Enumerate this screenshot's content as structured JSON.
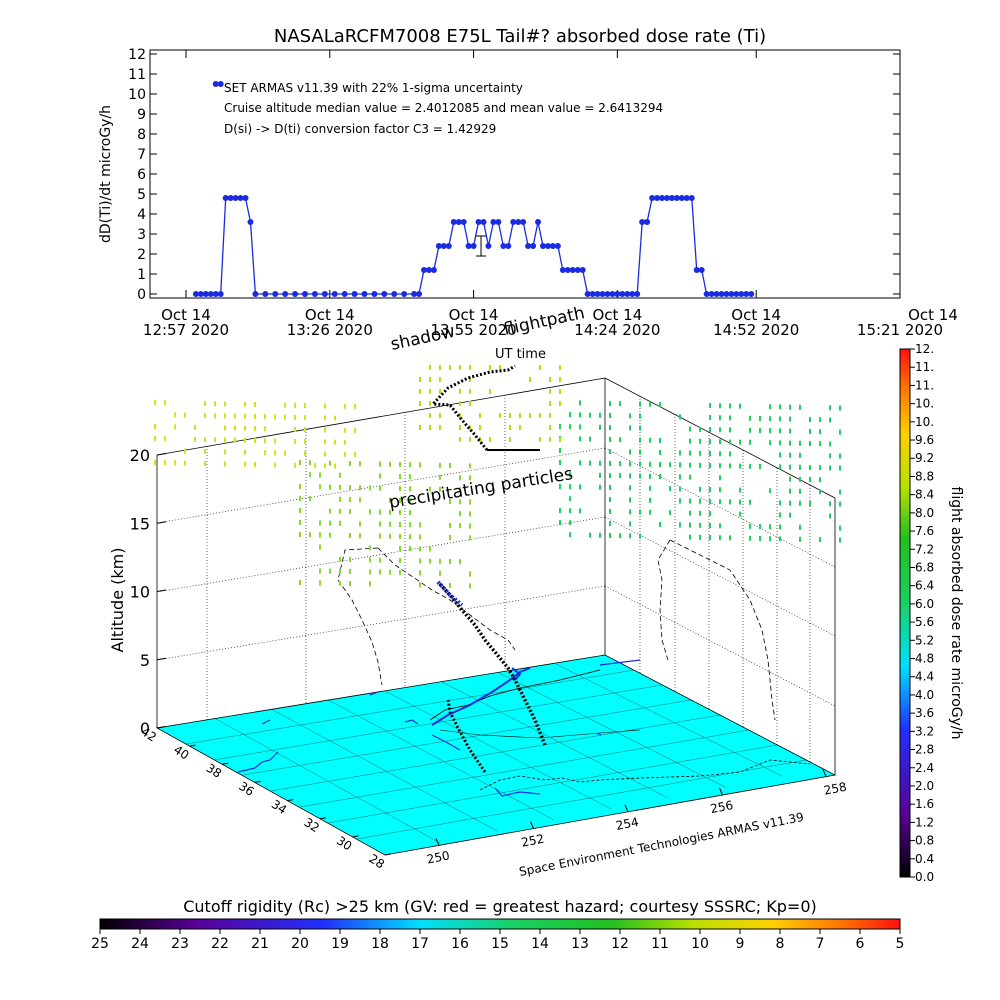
{
  "chart_data": [
    {
      "type": "line",
      "title": "NASALaRCFM7008  E75L Tail#? absorbed dose rate (Ti)",
      "ylabel": "dD(Ti)/dt microGy/h",
      "ylim": [
        0,
        12
      ],
      "yticks": [
        "0",
        "1",
        "2",
        "3",
        "4",
        "5",
        "6",
        "7",
        "8",
        "9",
        "10",
        "11",
        "12"
      ],
      "xlim": [
        0,
        144
      ],
      "xticks": [
        {
          "x": 0,
          "line1": "Oct 14",
          "line2": "12:57 2020"
        },
        {
          "x": 29,
          "line1": "Oct 14",
          "line2": "13:26 2020"
        },
        {
          "x": 58,
          "line1": "Oct 14",
          "line2": "13:55 2020"
        },
        {
          "x": 87,
          "line1": "Oct 14",
          "line2": "14:24 2020"
        },
        {
          "x": 115,
          "line1": "Oct 14",
          "line2": "14:52 2020"
        },
        {
          "x": 144,
          "line1": "Oct 14",
          "line2": "15:21 2020"
        }
      ],
      "annotations": [
        "SET ARMAS v11.39 with 22% 1-sigma uncertainty",
        "Cruise altitude median value = 2.4012085 and mean value = 2.6413294",
        "D(si) -> D(ti) conversion factor C3 = 1.42929"
      ],
      "series": [
        {
          "color": "#1a2be0",
          "points": [
            [
              2,
              0
            ],
            [
              3,
              0
            ],
            [
              4,
              0
            ],
            [
              5,
              0
            ],
            [
              6,
              0
            ],
            [
              7,
              0
            ],
            [
              8,
              4.8
            ],
            [
              9,
              4.8
            ],
            [
              10,
              4.8
            ],
            [
              11,
              4.8
            ],
            [
              12,
              4.8
            ],
            [
              13,
              3.6
            ],
            [
              14,
              0
            ],
            [
              16,
              0
            ],
            [
              18,
              0
            ],
            [
              20,
              0
            ],
            [
              22,
              0
            ],
            [
              24,
              0
            ],
            [
              26,
              0
            ],
            [
              28,
              0
            ],
            [
              30,
              0
            ],
            [
              32,
              0
            ],
            [
              34,
              0
            ],
            [
              36,
              0
            ],
            [
              38,
              0
            ],
            [
              40,
              0
            ],
            [
              42,
              0
            ],
            [
              44,
              0
            ],
            [
              46,
              0
            ],
            [
              47,
              0
            ],
            [
              48,
              1.2
            ],
            [
              49,
              1.2
            ],
            [
              50,
              1.2
            ],
            [
              51,
              2.4
            ],
            [
              52,
              2.4
            ],
            [
              53,
              2.4
            ],
            [
              54,
              3.6
            ],
            [
              55,
              3.6
            ],
            [
              56,
              3.6
            ],
            [
              57,
              2.4
            ],
            [
              58,
              2.4
            ],
            [
              59,
              3.6
            ],
            [
              60,
              3.6
            ],
            [
              61,
              2.4
            ],
            [
              62,
              3.6
            ],
            [
              63,
              3.6
            ],
            [
              64,
              2.4
            ],
            [
              65,
              2.4
            ],
            [
              66,
              3.6
            ],
            [
              67,
              3.6
            ],
            [
              68,
              3.6
            ],
            [
              69,
              2.4
            ],
            [
              70,
              2.4
            ],
            [
              71,
              3.6
            ],
            [
              72,
              2.4
            ],
            [
              73,
              2.4
            ],
            [
              74,
              2.4
            ],
            [
              75,
              2.4
            ],
            [
              76,
              1.2
            ],
            [
              77,
              1.2
            ],
            [
              78,
              1.2
            ],
            [
              79,
              1.2
            ],
            [
              80,
              1.2
            ],
            [
              81,
              0
            ],
            [
              82,
              0
            ],
            [
              83,
              0
            ],
            [
              84,
              0
            ],
            [
              85,
              0
            ],
            [
              86,
              0
            ],
            [
              87,
              0
            ],
            [
              88,
              0
            ],
            [
              89,
              0
            ],
            [
              90,
              0
            ],
            [
              91,
              0
            ],
            [
              92,
              3.6
            ],
            [
              93,
              3.6
            ],
            [
              94,
              4.8
            ],
            [
              95,
              4.8
            ],
            [
              96,
              4.8
            ],
            [
              97,
              4.8
            ],
            [
              98,
              4.8
            ],
            [
              99,
              4.8
            ],
            [
              100,
              4.8
            ],
            [
              101,
              4.8
            ],
            [
              102,
              4.8
            ],
            [
              103,
              1.2
            ],
            [
              104,
              1.2
            ],
            [
              105,
              0
            ],
            [
              106,
              0
            ],
            [
              107,
              0
            ],
            [
              108,
              0
            ],
            [
              109,
              0
            ],
            [
              110,
              0
            ],
            [
              111,
              0
            ],
            [
              112,
              0
            ],
            [
              113,
              0
            ],
            [
              114,
              0
            ]
          ]
        }
      ],
      "legend_marker": {
        "x": [
          6,
          7
        ],
        "y": 10.5
      },
      "error_bar": {
        "x": 59.5,
        "y": 2.4,
        "low": 1.9,
        "high": 2.9
      }
    },
    {
      "type": "scatter",
      "zlabel": "Altitude (km)",
      "zlim": [
        0,
        20
      ],
      "zticks": [
        "0",
        "5",
        "10",
        "15",
        "20"
      ],
      "lat_ticks": [
        "42",
        "40",
        "38",
        "36",
        "34",
        "32",
        "30",
        "28"
      ],
      "lon_ticks": [
        "250",
        "252",
        "254",
        "256",
        "258"
      ],
      "annotations": [
        "shadow",
        "flightpath",
        "UT time",
        "precipitating particles",
        "Space Environment Technologies ARMAS v11.39"
      ],
      "colorbar": {
        "label": "flight absorbed dose rate microGy/h",
        "range": [
          0,
          12
        ],
        "ticks": [
          "0.0",
          "0.4",
          "0.8",
          "1.2",
          "1.6",
          "2.0",
          "2.4",
          "2.8",
          "3.2",
          "3.6",
          "4.0",
          "4.4",
          "4.8",
          "5.2",
          "5.6",
          "6.0",
          "6.4",
          "6.8",
          "7.2",
          "7.6",
          "8.0",
          "8.4",
          "8.8",
          "9.2",
          "9.6",
          "10.",
          "10.",
          "11.",
          "11.",
          "12."
        ]
      },
      "flight_altitude_km": [
        4,
        6,
        8,
        10,
        11.5,
        11.5,
        13,
        21.5,
        24.5,
        26,
        25.5
      ],
      "particle_altitudes_km": [
        14,
        15.5,
        17,
        18.5,
        20,
        21.5
      ]
    },
    {
      "type": "heatmap",
      "title": "Cutoff rigidity (Rc) >25 km (GV: red = greatest hazard; courtesy SSSRC; Kp=0)",
      "colorbar_ticks": [
        "25",
        "24",
        "23",
        "22",
        "21",
        "20",
        "19",
        "18",
        "17",
        "16",
        "15",
        "14",
        "13",
        "12",
        "11",
        "10",
        "9",
        "8",
        "7",
        "6",
        "5"
      ],
      "range": [
        25,
        5
      ]
    }
  ]
}
